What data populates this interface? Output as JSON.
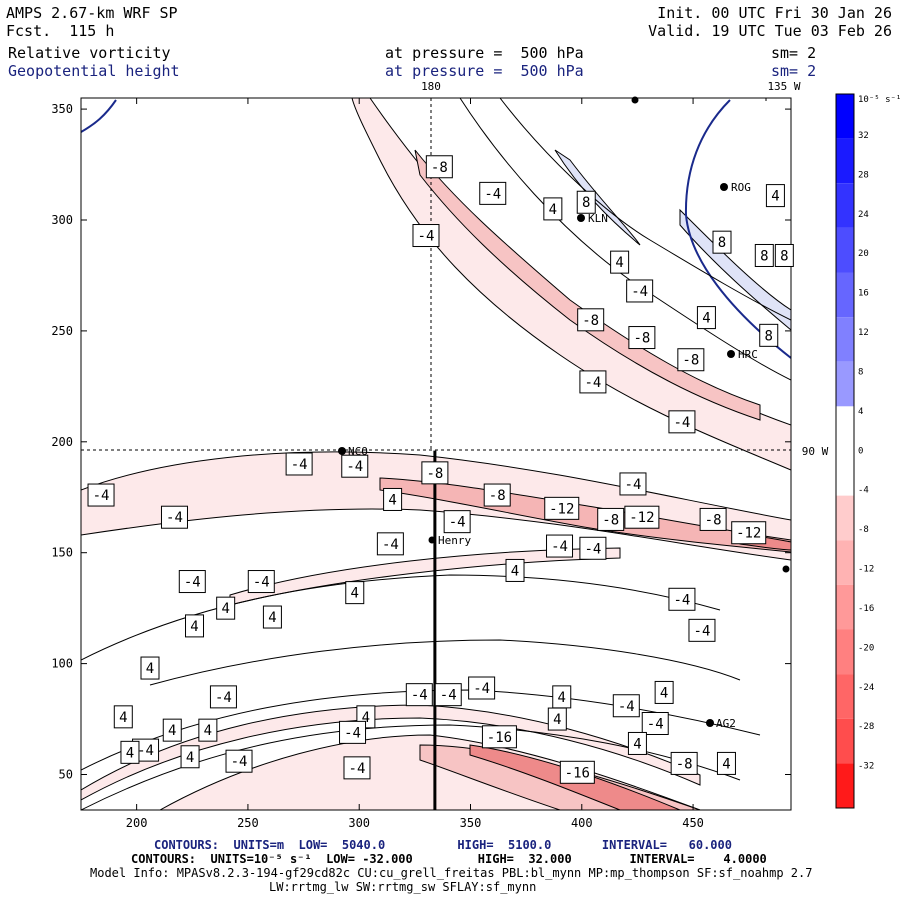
{
  "header": {
    "model": "AMPS 2.67-km WRF SP",
    "fcst": "Fcst.  115 h",
    "init": "Init. 00 UTC Fri 30 Jan 26",
    "valid": "Valid. 19 UTC Tue 03 Feb 26",
    "field1": "Relative vorticity",
    "field1_pressure": "at pressure =  500 hPa",
    "field1_sm": "sm= 2",
    "field2": "Geopotential height",
    "field2_pressure": "at pressure =  500 hPa",
    "field2_sm": "sm= 2"
  },
  "map_labels": {
    "lon180": "180",
    "lon135w": "135 W",
    "lat90w": "90 W"
  },
  "stations": [
    "NCO",
    "Henry",
    "KLN",
    "ROG",
    "HRC",
    "AG2"
  ],
  "colorbar": {
    "unit": "10⁻⁵ s⁻¹",
    "ticks": [
      "32",
      "28",
      "24",
      "20",
      "16",
      "12",
      "8",
      "4",
      "0",
      "-4",
      "-8",
      "-12",
      "-16",
      "-20",
      "-24",
      "-28",
      "-32"
    ],
    "top_color": "#0000ff",
    "bottom_color": "#ff0000"
  },
  "footer": {
    "line1": "CONTOURS:  UNITS=m  LOW=  5040.0          HIGH=  5100.0       INTERVAL=   60.000",
    "line2": "CONTOURS:  UNITS=10⁻⁵ s⁻¹  LOW= -32.000         HIGH=  32.000        INTERVAL=    4.0000",
    "line3": "Model Info: MPASv8.2.3-194-gf29cd82c CU:cu_grell_freitas PBL:bl_mynn MP:mp_thompson SF:sf_noahmp 2.7",
    "line4": "LW:rrtmg_lw SW:rrtmg_sw SFLAY:sf_mynn"
  },
  "chart_data": {
    "type": "heatmap",
    "x": [
      200,
      250,
      300,
      350,
      400,
      450
    ],
    "y": [
      50,
      100,
      150,
      200,
      250,
      300,
      350
    ],
    "xlim": [
      175,
      494
    ],
    "ylim": [
      34,
      355
    ],
    "vertical_section_x": 334,
    "vertical_section_y": [
      34,
      196
    ],
    "contour_labels": [
      {
        "value": "-8",
        "x": 336,
        "y": 324
      },
      {
        "value": "-4",
        "x": 360,
        "y": 312
      },
      {
        "value": "-4",
        "x": 330,
        "y": 293
      },
      {
        "value": "4",
        "x": 387,
        "y": 305
      },
      {
        "value": "8",
        "x": 402,
        "y": 308
      },
      {
        "value": "4",
        "x": 417,
        "y": 281
      },
      {
        "value": "-4",
        "x": 426,
        "y": 268
      },
      {
        "value": "8",
        "x": 482,
        "y": 284
      },
      {
        "value": "8",
        "x": 491,
        "y": 284
      },
      {
        "value": "4",
        "x": 487,
        "y": 311
      },
      {
        "value": "8",
        "x": 463,
        "y": 290
      },
      {
        "value": "-8",
        "x": 404,
        "y": 255
      },
      {
        "value": "-8",
        "x": 427,
        "y": 247
      },
      {
        "value": "4",
        "x": 456,
        "y": 256
      },
      {
        "value": "8",
        "x": 484,
        "y": 248
      },
      {
        "value": "-8",
        "x": 449,
        "y": 237
      },
      {
        "value": "-4",
        "x": 405,
        "y": 227
      },
      {
        "value": "-4",
        "x": 445,
        "y": 209
      },
      {
        "value": "-4",
        "x": 273,
        "y": 190
      },
      {
        "value": "-4",
        "x": 298,
        "y": 189
      },
      {
        "value": "-8",
        "x": 334,
        "y": 186
      },
      {
        "value": "-4",
        "x": 184,
        "y": 176
      },
      {
        "value": "-4",
        "x": 217,
        "y": 166
      },
      {
        "value": "4",
        "x": 315,
        "y": 174
      },
      {
        "value": "-8",
        "x": 362,
        "y": 176
      },
      {
        "value": "-4",
        "x": 423,
        "y": 181
      },
      {
        "value": "-12",
        "x": 391,
        "y": 170
      },
      {
        "value": "-8",
        "x": 413,
        "y": 165
      },
      {
        "value": "-12",
        "x": 427,
        "y": 166
      },
      {
        "value": "-8",
        "x": 459,
        "y": 165
      },
      {
        "value": "-12",
        "x": 475,
        "y": 159
      },
      {
        "value": "-4",
        "x": 344,
        "y": 164
      },
      {
        "value": "-4",
        "x": 314,
        "y": 154
      },
      {
        "value": "-4",
        "x": 390,
        "y": 153
      },
      {
        "value": "-4",
        "x": 405,
        "y": 152
      },
      {
        "value": "4",
        "x": 370,
        "y": 142
      },
      {
        "value": "-4",
        "x": 225,
        "y": 137
      },
      {
        "value": "-4",
        "x": 256,
        "y": 137
      },
      {
        "value": "4",
        "x": 298,
        "y": 132
      },
      {
        "value": "4",
        "x": 240,
        "y": 125
      },
      {
        "value": "4",
        "x": 261,
        "y": 121
      },
      {
        "value": "-4",
        "x": 445,
        "y": 129
      },
      {
        "value": "-4",
        "x": 454,
        "y": 115
      },
      {
        "value": "4",
        "x": 226,
        "y": 117
      },
      {
        "value": "4",
        "x": 206,
        "y": 98
      },
      {
        "value": "-4",
        "x": 239,
        "y": 85
      },
      {
        "value": "-4",
        "x": 327,
        "y": 86
      },
      {
        "value": "-4",
        "x": 340,
        "y": 86
      },
      {
        "value": "-4",
        "x": 355,
        "y": 89
      },
      {
        "value": "4",
        "x": 391,
        "y": 85
      },
      {
        "value": "-4",
        "x": 420,
        "y": 81
      },
      {
        "value": "4",
        "x": 437,
        "y": 87
      },
      {
        "value": "4",
        "x": 303,
        "y": 76
      },
      {
        "value": "4",
        "x": 389,
        "y": 75
      },
      {
        "value": "4",
        "x": 194,
        "y": 76
      },
      {
        "value": "-4",
        "x": 433,
        "y": 73
      },
      {
        "value": "4",
        "x": 216,
        "y": 70
      },
      {
        "value": "4",
        "x": 232,
        "y": 70
      },
      {
        "value": "-4",
        "x": 297,
        "y": 69
      },
      {
        "value": "-16",
        "x": 363,
        "y": 67
      },
      {
        "value": "4",
        "x": 425,
        "y": 64
      },
      {
        "value": "4",
        "x": 224,
        "y": 58
      },
      {
        "value": "-4",
        "x": 246,
        "y": 56
      },
      {
        "value": "-4",
        "x": 204,
        "y": 61
      },
      {
        "value": "-8",
        "x": 446,
        "y": 55
      },
      {
        "value": "4",
        "x": 465,
        "y": 55
      },
      {
        "value": "-4",
        "x": 299,
        "y": 53
      },
      {
        "value": "-16",
        "x": 398,
        "y": 51
      },
      {
        "value": "4",
        "x": 197,
        "y": 60
      }
    ]
  }
}
